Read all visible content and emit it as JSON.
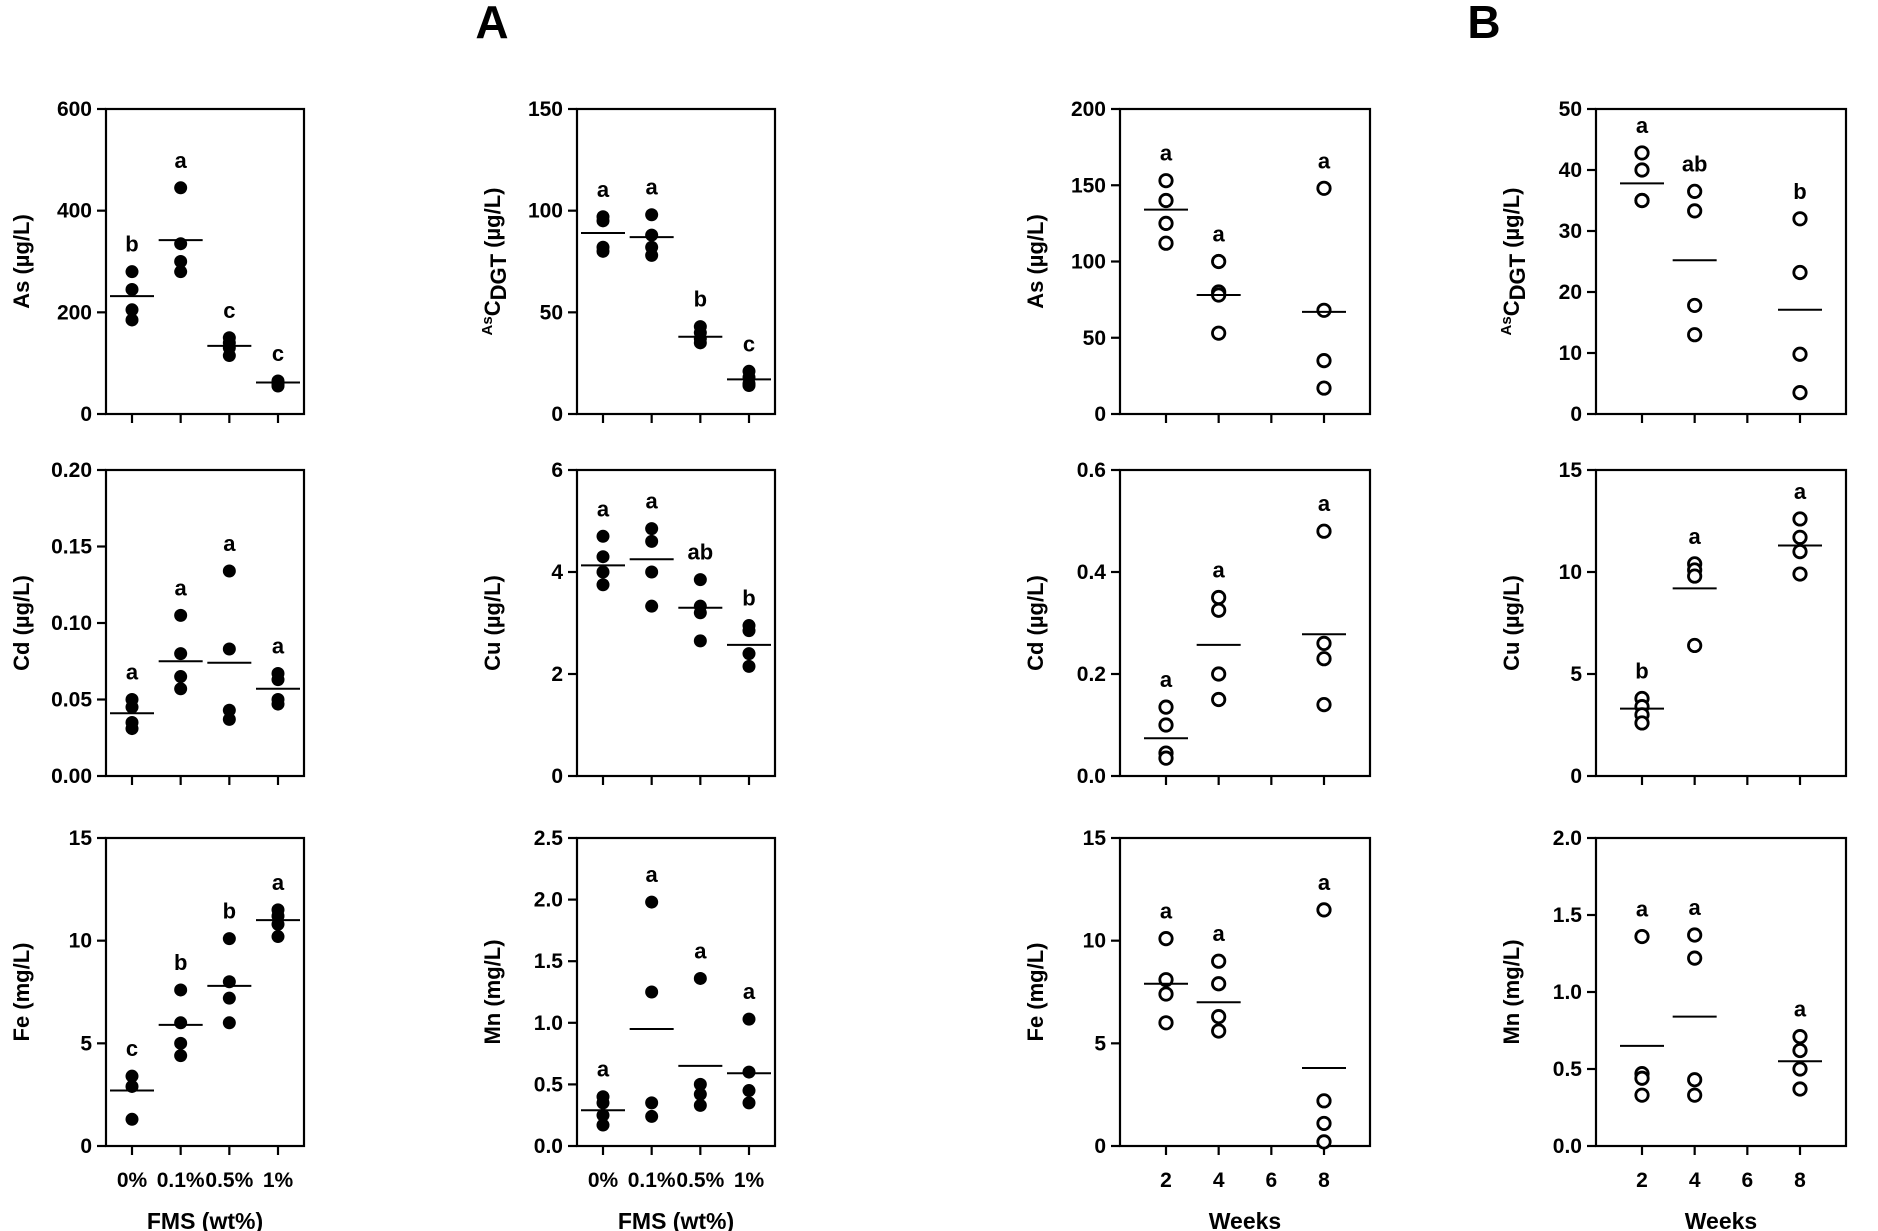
{
  "panel_labels": [
    "A",
    "B"
  ],
  "chart_data": [
    {
      "id": "A-As",
      "type": "scatter",
      "marker": "filled",
      "ylabel": "As (µg/L)",
      "xlabel": "",
      "categories": [
        "0%",
        "0.1%",
        "0.5%",
        "1%"
      ],
      "ylim": [
        0,
        600
      ],
      "yticks": [
        0,
        200,
        400,
        600
      ],
      "ytick_labels": [
        "0",
        "200",
        "400",
        "600"
      ],
      "groups": [
        {
          "x": "0%",
          "values": [
            280,
            245,
            205,
            185
          ],
          "mean": 232,
          "letter": "b"
        },
        {
          "x": "0.1%",
          "values": [
            445,
            335,
            300,
            280
          ],
          "mean": 342,
          "letter": "a"
        },
        {
          "x": "0.5%",
          "values": [
            150,
            140,
            130,
            115
          ],
          "mean": 134,
          "letter": "c"
        },
        {
          "x": "1%",
          "values": [
            65,
            62,
            58,
            55
          ],
          "mean": 62,
          "letter": "c"
        }
      ]
    },
    {
      "id": "A-AsCDGT",
      "type": "scatter",
      "marker": "filled",
      "ylabel": "AsCDGT (µg/L)",
      "ylabel_parts": [
        "As",
        "C",
        "DGT",
        " (µg/L)"
      ],
      "xlabel": "",
      "categories": [
        "0%",
        "0.1%",
        "0.5%",
        "1%"
      ],
      "ylim": [
        0,
        150
      ],
      "yticks": [
        0,
        50,
        100,
        150
      ],
      "ytick_labels": [
        "0",
        "50",
        "100",
        "150"
      ],
      "groups": [
        {
          "x": "0%",
          "values": [
            97,
            95,
            82,
            80
          ],
          "mean": 89,
          "letter": "a"
        },
        {
          "x": "0.1%",
          "values": [
            98,
            88,
            82,
            78
          ],
          "mean": 87,
          "letter": "a"
        },
        {
          "x": "0.5%",
          "values": [
            43,
            40,
            37,
            35
          ],
          "mean": 38,
          "letter": "b"
        },
        {
          "x": "1%",
          "values": [
            21,
            18,
            15,
            14
          ],
          "mean": 17,
          "letter": "c"
        }
      ]
    },
    {
      "id": "B-As",
      "type": "scatter",
      "marker": "open",
      "ylabel": "As (µg/L)",
      "xlabel": "",
      "categories": [
        "2",
        "4",
        "6",
        "8"
      ],
      "ylim": [
        0,
        200
      ],
      "yticks": [
        0,
        50,
        100,
        150,
        200
      ],
      "ytick_labels": [
        "0",
        "50",
        "100",
        "150",
        "200"
      ],
      "groups": [
        {
          "x": "2",
          "values": [
            153,
            140,
            125,
            112
          ],
          "mean": 134,
          "letter": "a"
        },
        {
          "x": "4",
          "values": [
            100,
            80,
            78,
            53
          ],
          "mean": 78,
          "letter": "a"
        },
        {
          "x": "8",
          "values": [
            148,
            68,
            35,
            17
          ],
          "mean": 67,
          "letter": "a"
        }
      ]
    },
    {
      "id": "B-AsCDGT",
      "type": "scatter",
      "marker": "open",
      "ylabel": "AsCDGT (µg/L)",
      "ylabel_parts": [
        "As",
        "C",
        "DGT",
        " (µg/L)"
      ],
      "xlabel": "",
      "categories": [
        "2",
        "4",
        "6",
        "8"
      ],
      "ylim": [
        0,
        50
      ],
      "yticks": [
        0,
        10,
        20,
        30,
        40,
        50
      ],
      "ytick_labels": [
        "0",
        "10",
        "20",
        "30",
        "40",
        "50"
      ],
      "groups": [
        {
          "x": "2",
          "values": [
            42.8,
            40,
            35,
            35
          ],
          "mean": 37.8,
          "letter": "a"
        },
        {
          "x": "4",
          "values": [
            36.5,
            33.3,
            17.8,
            13
          ],
          "mean": 25.2,
          "letter": "ab"
        },
        {
          "x": "8",
          "values": [
            32,
            23.2,
            9.8,
            3.5
          ],
          "mean": 17.1,
          "letter": "b"
        }
      ]
    },
    {
      "id": "A-Cd",
      "type": "scatter",
      "marker": "filled",
      "ylabel": "Cd (µg/L)",
      "xlabel": "",
      "categories": [
        "0%",
        "0.1%",
        "0.5%",
        "1%"
      ],
      "ylim": [
        0,
        0.2
      ],
      "yticks": [
        0,
        0.05,
        0.1,
        0.15,
        0.2
      ],
      "ytick_labels": [
        "0.00",
        "0.05",
        "0.10",
        "0.15",
        "0.20"
      ],
      "groups": [
        {
          "x": "0%",
          "values": [
            0.05,
            0.045,
            0.035,
            0.031
          ],
          "mean": 0.041,
          "letter": "a"
        },
        {
          "x": "0.1%",
          "values": [
            0.105,
            0.08,
            0.065,
            0.057
          ],
          "mean": 0.075,
          "letter": "a"
        },
        {
          "x": "0.5%",
          "values": [
            0.134,
            0.083,
            0.043,
            0.037
          ],
          "mean": 0.074,
          "letter": "a"
        },
        {
          "x": "1%",
          "values": [
            0.067,
            0.063,
            0.05,
            0.047
          ],
          "mean": 0.057,
          "letter": "a"
        }
      ]
    },
    {
      "id": "A-Cu",
      "type": "scatter",
      "marker": "filled",
      "ylabel": "Cu (µg/L)",
      "xlabel": "",
      "categories": [
        "0%",
        "0.1%",
        "0.5%",
        "1%"
      ],
      "ylim": [
        0,
        6
      ],
      "yticks": [
        0,
        2,
        4,
        6
      ],
      "ytick_labels": [
        "0",
        "2",
        "4",
        "6"
      ],
      "groups": [
        {
          "x": "0%",
          "values": [
            4.7,
            4.3,
            4.0,
            3.75
          ],
          "mean": 4.13,
          "letter": "a"
        },
        {
          "x": "0.1%",
          "values": [
            4.85,
            4.6,
            4.0,
            3.33
          ],
          "mean": 4.25,
          "letter": "a"
        },
        {
          "x": "0.5%",
          "values": [
            3.85,
            3.33,
            3.2,
            2.65
          ],
          "mean": 3.3,
          "letter": "ab"
        },
        {
          "x": "1%",
          "values": [
            2.95,
            2.85,
            2.4,
            2.15
          ],
          "mean": 2.57,
          "letter": "b"
        }
      ]
    },
    {
      "id": "B-Cd",
      "type": "scatter",
      "marker": "open",
      "ylabel": "Cd (µg/L)",
      "xlabel": "",
      "categories": [
        "2",
        "4",
        "6",
        "8"
      ],
      "ylim": [
        0,
        0.6
      ],
      "yticks": [
        0,
        0.2,
        0.4,
        0.6
      ],
      "ytick_labels": [
        "0.0",
        "0.2",
        "0.4",
        "0.6"
      ],
      "groups": [
        {
          "x": "2",
          "values": [
            0.135,
            0.1,
            0.045,
            0.035
          ],
          "mean": 0.074,
          "letter": "a"
        },
        {
          "x": "4",
          "values": [
            0.35,
            0.325,
            0.2,
            0.15
          ],
          "mean": 0.257,
          "letter": "a"
        },
        {
          "x": "8",
          "values": [
            0.48,
            0.26,
            0.23,
            0.14
          ],
          "mean": 0.278,
          "letter": "a"
        }
      ]
    },
    {
      "id": "B-Cu",
      "type": "scatter",
      "marker": "open",
      "ylabel": "Cu (µg/L)",
      "xlabel": "",
      "categories": [
        "2",
        "4",
        "6",
        "8"
      ],
      "ylim": [
        0,
        15
      ],
      "yticks": [
        0,
        5,
        10,
        15
      ],
      "ytick_labels": [
        "0",
        "5",
        "10",
        "15"
      ],
      "groups": [
        {
          "x": "2",
          "values": [
            3.8,
            3.4,
            3.0,
            2.6
          ],
          "mean": 3.3,
          "letter": "b"
        },
        {
          "x": "4",
          "values": [
            10.4,
            10.1,
            9.8,
            6.4
          ],
          "mean": 9.2,
          "letter": "a"
        },
        {
          "x": "8",
          "values": [
            12.6,
            11.7,
            11.0,
            9.9
          ],
          "mean": 11.3,
          "letter": "a"
        }
      ]
    },
    {
      "id": "A-Fe",
      "type": "scatter",
      "marker": "filled",
      "ylabel": "Fe (mg/L)",
      "xlabel": "FMS (wt%)",
      "categories": [
        "0%",
        "0.1%",
        "0.5%",
        "1%"
      ],
      "ylim": [
        0,
        15
      ],
      "yticks": [
        0,
        5,
        10,
        15
      ],
      "ytick_labels": [
        "0",
        "5",
        "10",
        "15"
      ],
      "groups": [
        {
          "x": "0%",
          "values": [
            3.4,
            2.9,
            1.3
          ],
          "mean": 2.7,
          "letter": "c"
        },
        {
          "x": "0.1%",
          "values": [
            7.6,
            6.0,
            5.0,
            4.4
          ],
          "mean": 5.9,
          "letter": "b"
        },
        {
          "x": "0.5%",
          "values": [
            10.1,
            8.0,
            7.2,
            6.0
          ],
          "mean": 7.8,
          "letter": "b"
        },
        {
          "x": "1%",
          "values": [
            11.5,
            11.2,
            10.8,
            10.2
          ],
          "mean": 11.0,
          "letter": "a"
        }
      ]
    },
    {
      "id": "A-Mn",
      "type": "scatter",
      "marker": "filled",
      "ylabel": "Mn (mg/L)",
      "xlabel": "FMS (wt%)",
      "categories": [
        "0%",
        "0.1%",
        "0.5%",
        "1%"
      ],
      "ylim": [
        0,
        2.5
      ],
      "yticks": [
        0,
        0.5,
        1,
        1.5,
        2,
        2.5
      ],
      "ytick_labels": [
        "0.0",
        "0.5",
        "1.0",
        "1.5",
        "2.0",
        "2.5"
      ],
      "groups": [
        {
          "x": "0%",
          "values": [
            0.4,
            0.35,
            0.25,
            0.17
          ],
          "mean": 0.29,
          "letter": "a"
        },
        {
          "x": "0.1%",
          "values": [
            1.98,
            1.25,
            0.35,
            0.24
          ],
          "mean": 0.95,
          "letter": "a"
        },
        {
          "x": "0.5%",
          "values": [
            1.36,
            0.5,
            0.42,
            0.33
          ],
          "mean": 0.65,
          "letter": "a"
        },
        {
          "x": "1%",
          "values": [
            1.03,
            0.6,
            0.45,
            0.35
          ],
          "mean": 0.59,
          "letter": "a"
        }
      ]
    },
    {
      "id": "B-Fe",
      "type": "scatter",
      "marker": "open",
      "ylabel": "Fe (mg/L)",
      "xlabel": "Weeks",
      "categories": [
        "2",
        "4",
        "6",
        "8"
      ],
      "ylim": [
        0,
        15
      ],
      "yticks": [
        0,
        5,
        10,
        15
      ],
      "ytick_labels": [
        "0",
        "5",
        "10",
        "15"
      ],
      "groups": [
        {
          "x": "2",
          "values": [
            10.1,
            8.1,
            7.4,
            6.0
          ],
          "mean": 7.9,
          "letter": "a"
        },
        {
          "x": "4",
          "values": [
            9.0,
            7.9,
            6.3,
            5.6
          ],
          "mean": 7.0,
          "letter": "a"
        },
        {
          "x": "8",
          "values": [
            11.5,
            2.2,
            1.1,
            0.2
          ],
          "mean": 3.8,
          "letter": "a"
        }
      ]
    },
    {
      "id": "B-Mn",
      "type": "scatter",
      "marker": "open",
      "ylabel": "Mn (mg/L)",
      "xlabel": "Weeks",
      "categories": [
        "2",
        "4",
        "6",
        "8"
      ],
      "ylim": [
        0,
        2
      ],
      "yticks": [
        0,
        0.5,
        1,
        1.5,
        2
      ],
      "ytick_labels": [
        "0.0",
        "0.5",
        "1.0",
        "1.5",
        "2.0"
      ],
      "groups": [
        {
          "x": "2",
          "values": [
            1.36,
            0.47,
            0.44,
            0.33
          ],
          "mean": 0.65,
          "letter": "a"
        },
        {
          "x": "4",
          "values": [
            1.37,
            1.22,
            0.43,
            0.33
          ],
          "mean": 0.84,
          "letter": "a"
        },
        {
          "x": "8",
          "values": [
            0.71,
            0.62,
            0.5,
            0.37
          ],
          "mean": 0.55,
          "letter": "a"
        }
      ]
    }
  ]
}
